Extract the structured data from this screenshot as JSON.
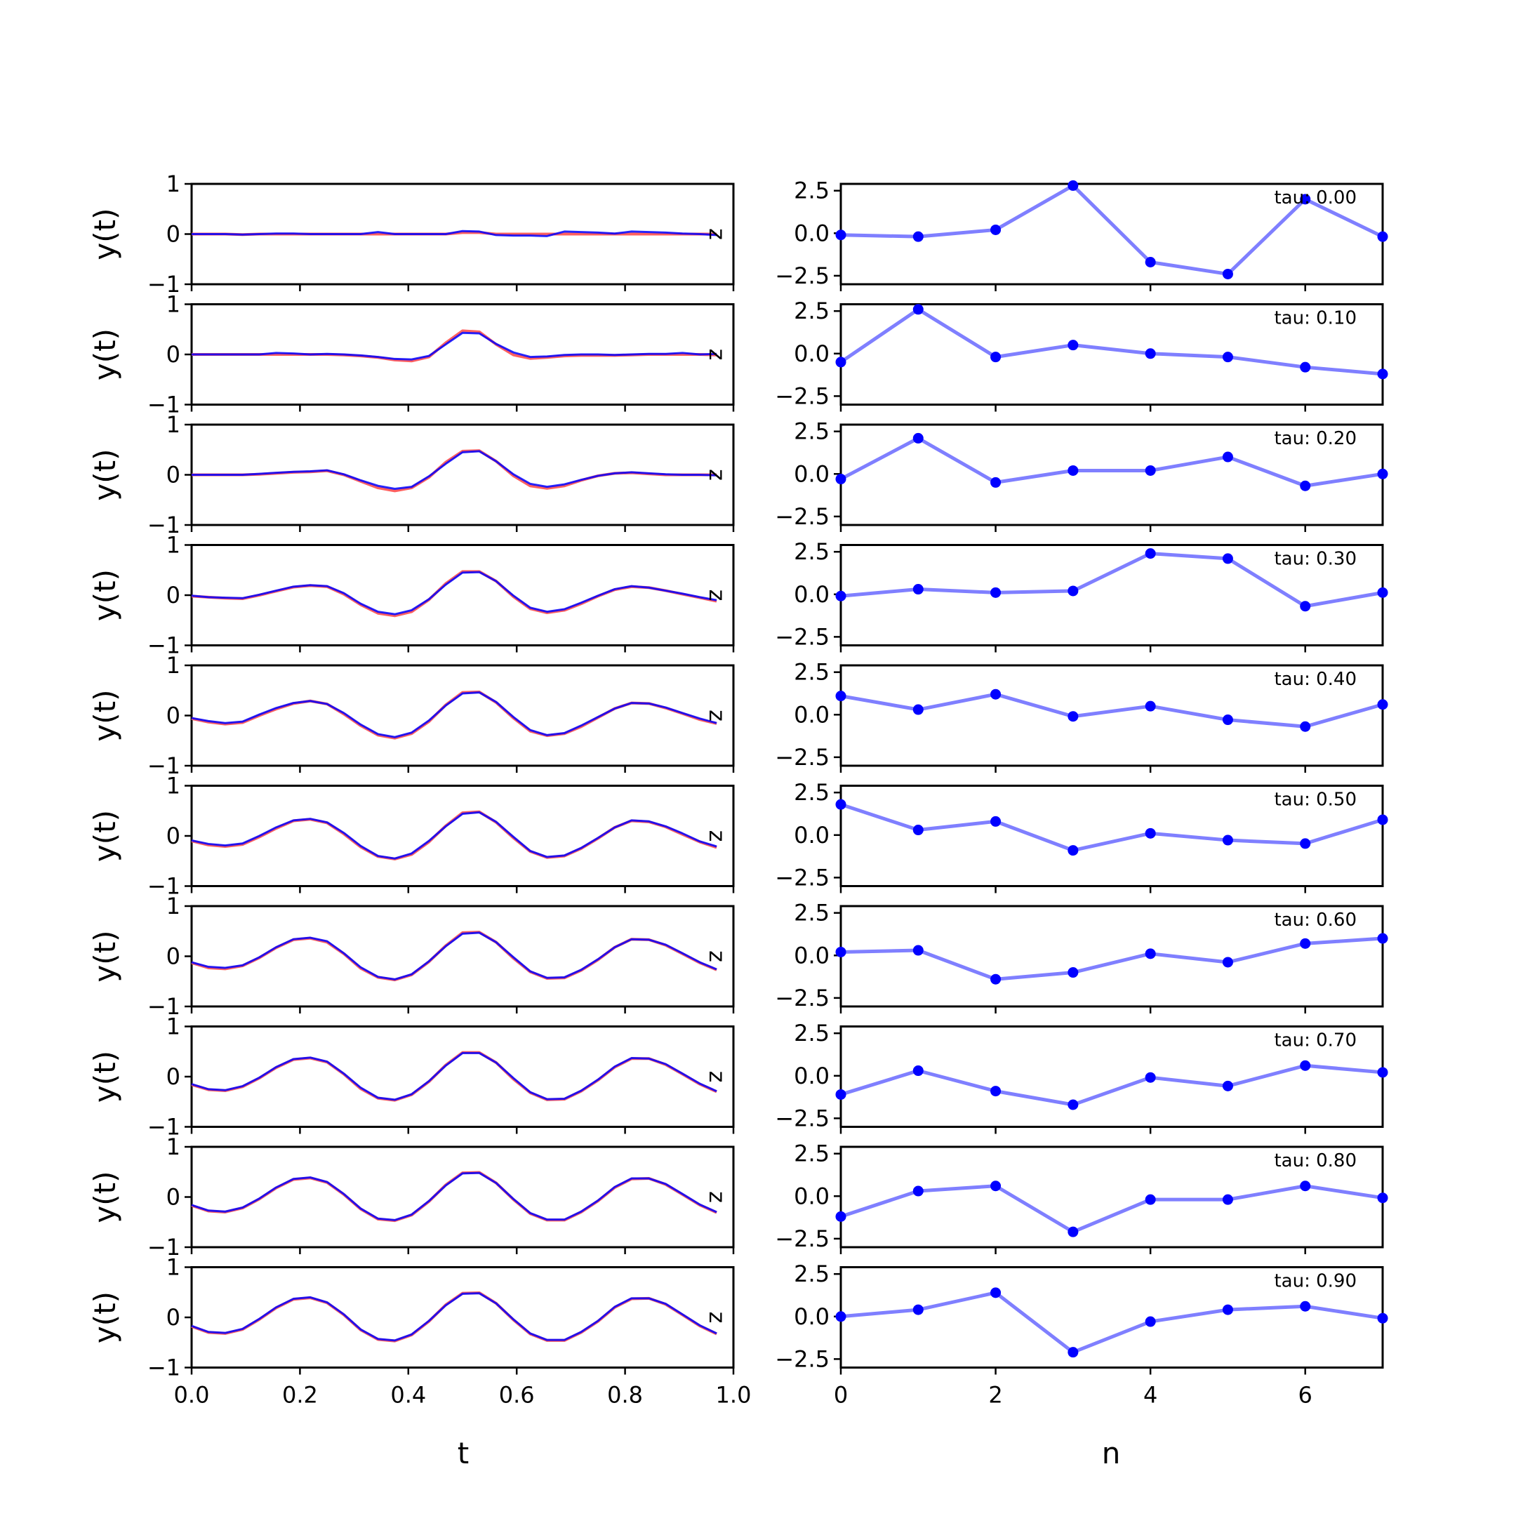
{
  "chart_data": [
    {
      "type": "line",
      "panel": "left",
      "ylabel": "y(t)",
      "xlabel": "t",
      "xlim": [
        0.0,
        1.0
      ],
      "ylim": [
        -1,
        1
      ],
      "yticks": [
        -1,
        0,
        1
      ],
      "ytick_labels": [
        "−1",
        "0",
        "1"
      ],
      "xticks": [
        0.0,
        0.2,
        0.4,
        0.6,
        0.8,
        1.0
      ],
      "xtick_labels": [
        "0.0",
        "0.2",
        "0.4",
        "0.6",
        "0.8",
        "1.0"
      ],
      "series_colors": {
        "reference": "#ff6060",
        "predicted": "#0000ff",
        "overlap": "#800080"
      },
      "inline_label": "z",
      "t": [
        0.0,
        0.031,
        0.062,
        0.094,
        0.125,
        0.156,
        0.188,
        0.219,
        0.25,
        0.281,
        0.312,
        0.344,
        0.375,
        0.406,
        0.438,
        0.469,
        0.5,
        0.531,
        0.562,
        0.594,
        0.625,
        0.656,
        0.688,
        0.719,
        0.75,
        0.781,
        0.812,
        0.844,
        0.875,
        0.906,
        0.938,
        0.969
      ],
      "rows": [
        {
          "reference": [
            0.0,
            0.0,
            0.0,
            -0.01,
            0.0,
            0.0,
            0.0,
            0.0,
            0.0,
            0.0,
            0.0,
            0.0,
            0.0,
            0.0,
            0.0,
            0.0,
            0.03,
            0.03,
            0.0,
            0.0,
            0.0,
            0.0,
            0.0,
            0.0,
            0.0,
            0.0,
            0.0,
            0.0,
            0.0,
            0.0,
            0.0,
            0.0
          ],
          "predicted": [
            0.0,
            0.0,
            0.0,
            -0.01,
            0.0,
            0.01,
            0.01,
            0.0,
            0.0,
            0.0,
            0.0,
            0.04,
            0.0,
            0.0,
            0.0,
            0.0,
            0.06,
            0.05,
            -0.02,
            -0.03,
            -0.03,
            -0.04,
            0.05,
            0.04,
            0.03,
            0.01,
            0.05,
            0.04,
            0.03,
            0.01,
            0.0,
            -0.02
          ]
        },
        {
          "reference": [
            0.0,
            0.0,
            0.0,
            0.0,
            0.0,
            0.0,
            0.0,
            0.0,
            0.0,
            -0.01,
            -0.03,
            -0.06,
            -0.11,
            -0.13,
            -0.05,
            0.23,
            0.47,
            0.45,
            0.2,
            -0.01,
            -0.08,
            -0.06,
            -0.03,
            -0.02,
            -0.02,
            -0.02,
            -0.01,
            0.0,
            0.0,
            0.0,
            0.0,
            -0.01
          ],
          "predicted": [
            0.0,
            0.0,
            0.0,
            0.0,
            0.0,
            0.03,
            0.02,
            0.0,
            0.01,
            0.0,
            -0.02,
            -0.05,
            -0.09,
            -0.1,
            -0.03,
            0.2,
            0.43,
            0.42,
            0.21,
            0.04,
            -0.05,
            -0.04,
            -0.01,
            0.0,
            0.0,
            -0.01,
            0.0,
            0.01,
            0.01,
            0.03,
            0.0,
            0.01
          ]
        },
        {
          "reference": [
            0.0,
            0.0,
            0.0,
            0.0,
            0.01,
            0.03,
            0.05,
            0.06,
            0.08,
            0.0,
            -0.13,
            -0.26,
            -0.32,
            -0.26,
            -0.05,
            0.25,
            0.47,
            0.48,
            0.27,
            -0.02,
            -0.22,
            -0.27,
            -0.22,
            -0.11,
            -0.02,
            0.03,
            0.04,
            0.02,
            0.0,
            0.0,
            0.0,
            0.0
          ],
          "predicted": [
            0.0,
            0.0,
            0.0,
            0.0,
            0.02,
            0.04,
            0.06,
            0.07,
            0.09,
            0.01,
            -0.11,
            -0.22,
            -0.28,
            -0.24,
            -0.03,
            0.22,
            0.45,
            0.47,
            0.27,
            0.01,
            -0.18,
            -0.24,
            -0.19,
            -0.1,
            -0.02,
            0.03,
            0.05,
            0.03,
            0.01,
            0.0,
            0.0,
            -0.01
          ]
        },
        {
          "reference": [
            -0.02,
            -0.04,
            -0.06,
            -0.07,
            0.0,
            0.08,
            0.16,
            0.19,
            0.17,
            0.02,
            -0.19,
            -0.36,
            -0.41,
            -0.33,
            -0.09,
            0.23,
            0.47,
            0.47,
            0.28,
            -0.03,
            -0.27,
            -0.35,
            -0.3,
            -0.17,
            -0.02,
            0.11,
            0.17,
            0.15,
            0.09,
            0.02,
            -0.05,
            -0.12
          ],
          "predicted": [
            -0.01,
            -0.04,
            -0.05,
            -0.06,
            0.01,
            0.09,
            0.17,
            0.2,
            0.18,
            0.04,
            -0.17,
            -0.33,
            -0.38,
            -0.3,
            -0.08,
            0.21,
            0.45,
            0.46,
            0.28,
            -0.01,
            -0.25,
            -0.33,
            -0.28,
            -0.15,
            -0.01,
            0.12,
            0.18,
            0.15,
            0.09,
            0.03,
            -0.04,
            -0.1
          ]
        },
        {
          "reference": [
            -0.06,
            -0.13,
            -0.17,
            -0.14,
            0.0,
            0.13,
            0.24,
            0.29,
            0.23,
            0.03,
            -0.2,
            -0.39,
            -0.45,
            -0.36,
            -0.12,
            0.21,
            0.46,
            0.47,
            0.26,
            -0.05,
            -0.31,
            -0.4,
            -0.36,
            -0.22,
            -0.04,
            0.14,
            0.25,
            0.24,
            0.15,
            0.04,
            -0.08,
            -0.16
          ],
          "predicted": [
            -0.05,
            -0.11,
            -0.15,
            -0.12,
            0.02,
            0.15,
            0.25,
            0.29,
            0.23,
            0.05,
            -0.18,
            -0.37,
            -0.43,
            -0.34,
            -0.1,
            0.2,
            0.44,
            0.46,
            0.27,
            -0.03,
            -0.29,
            -0.39,
            -0.35,
            -0.2,
            -0.03,
            0.14,
            0.25,
            0.24,
            0.16,
            0.05,
            -0.06,
            -0.15
          ]
        },
        {
          "reference": [
            -0.1,
            -0.18,
            -0.21,
            -0.17,
            -0.02,
            0.15,
            0.3,
            0.33,
            0.26,
            0.04,
            -0.22,
            -0.41,
            -0.46,
            -0.37,
            -0.12,
            0.2,
            0.46,
            0.48,
            0.27,
            -0.04,
            -0.31,
            -0.43,
            -0.4,
            -0.25,
            -0.05,
            0.17,
            0.3,
            0.28,
            0.18,
            0.03,
            -0.12,
            -0.23
          ],
          "predicted": [
            -0.09,
            -0.16,
            -0.19,
            -0.15,
            0.0,
            0.17,
            0.31,
            0.34,
            0.27,
            0.06,
            -0.2,
            -0.4,
            -0.45,
            -0.35,
            -0.1,
            0.19,
            0.44,
            0.47,
            0.28,
            -0.02,
            -0.3,
            -0.42,
            -0.39,
            -0.24,
            -0.04,
            0.17,
            0.31,
            0.29,
            0.19,
            0.05,
            -0.11,
            -0.21
          ]
        },
        {
          "reference": [
            -0.13,
            -0.23,
            -0.25,
            -0.19,
            -0.03,
            0.17,
            0.33,
            0.36,
            0.28,
            0.05,
            -0.24,
            -0.42,
            -0.47,
            -0.37,
            -0.11,
            0.21,
            0.47,
            0.48,
            0.28,
            -0.04,
            -0.31,
            -0.44,
            -0.43,
            -0.28,
            -0.07,
            0.18,
            0.34,
            0.33,
            0.22,
            0.05,
            -0.13,
            -0.27
          ],
          "predicted": [
            -0.12,
            -0.21,
            -0.23,
            -0.18,
            -0.02,
            0.18,
            0.34,
            0.37,
            0.3,
            0.06,
            -0.22,
            -0.41,
            -0.46,
            -0.36,
            -0.1,
            0.2,
            0.45,
            0.47,
            0.28,
            -0.02,
            -0.3,
            -0.43,
            -0.42,
            -0.27,
            -0.06,
            0.18,
            0.34,
            0.33,
            0.23,
            0.06,
            -0.12,
            -0.26
          ]
        },
        {
          "reference": [
            -0.16,
            -0.26,
            -0.28,
            -0.2,
            -0.03,
            0.18,
            0.34,
            0.37,
            0.29,
            0.05,
            -0.24,
            -0.43,
            -0.47,
            -0.36,
            -0.1,
            0.23,
            0.48,
            0.48,
            0.28,
            -0.05,
            -0.32,
            -0.46,
            -0.45,
            -0.29,
            -0.07,
            0.19,
            0.36,
            0.36,
            0.24,
            0.05,
            -0.15,
            -0.3
          ],
          "predicted": [
            -0.15,
            -0.25,
            -0.27,
            -0.19,
            -0.02,
            0.19,
            0.35,
            0.38,
            0.3,
            0.06,
            -0.22,
            -0.42,
            -0.46,
            -0.35,
            -0.09,
            0.22,
            0.47,
            0.47,
            0.28,
            -0.03,
            -0.31,
            -0.45,
            -0.44,
            -0.28,
            -0.06,
            0.2,
            0.37,
            0.36,
            0.25,
            0.06,
            -0.14,
            -0.29
          ]
        },
        {
          "reference": [
            -0.17,
            -0.28,
            -0.3,
            -0.22,
            -0.04,
            0.18,
            0.35,
            0.38,
            0.29,
            0.05,
            -0.24,
            -0.44,
            -0.47,
            -0.36,
            -0.09,
            0.24,
            0.48,
            0.49,
            0.28,
            -0.05,
            -0.33,
            -0.46,
            -0.46,
            -0.3,
            -0.08,
            0.19,
            0.36,
            0.37,
            0.25,
            0.05,
            -0.16,
            -0.31
          ],
          "predicted": [
            -0.16,
            -0.27,
            -0.29,
            -0.21,
            -0.03,
            0.19,
            0.36,
            0.39,
            0.3,
            0.06,
            -0.23,
            -0.43,
            -0.46,
            -0.35,
            -0.08,
            0.23,
            0.47,
            0.48,
            0.28,
            -0.04,
            -0.32,
            -0.45,
            -0.45,
            -0.29,
            -0.07,
            0.2,
            0.37,
            0.37,
            0.26,
            0.06,
            -0.15,
            -0.3
          ]
        },
        {
          "reference": [
            -0.18,
            -0.3,
            -0.32,
            -0.24,
            -0.04,
            0.19,
            0.36,
            0.39,
            0.29,
            0.05,
            -0.25,
            -0.44,
            -0.47,
            -0.35,
            -0.08,
            0.25,
            0.48,
            0.49,
            0.28,
            -0.05,
            -0.33,
            -0.46,
            -0.46,
            -0.3,
            -0.08,
            0.2,
            0.37,
            0.38,
            0.26,
            0.05,
            -0.17,
            -0.33
          ],
          "predicted": [
            -0.17,
            -0.29,
            -0.31,
            -0.23,
            -0.03,
            0.2,
            0.37,
            0.4,
            0.3,
            0.06,
            -0.24,
            -0.43,
            -0.46,
            -0.34,
            -0.07,
            0.24,
            0.47,
            0.48,
            0.28,
            -0.04,
            -0.32,
            -0.45,
            -0.45,
            -0.29,
            -0.07,
            0.21,
            0.38,
            0.38,
            0.27,
            0.06,
            -0.16,
            -0.32
          ]
        }
      ]
    },
    {
      "type": "line",
      "panel": "right",
      "xlabel": "n",
      "xlim": [
        0,
        7
      ],
      "ylim": [
        -3.0,
        2.9
      ],
      "yticks": [
        -2.5,
        0.0,
        2.5
      ],
      "ytick_labels": [
        "−2.5",
        "0.0",
        "2.5"
      ],
      "xticks": [
        0,
        2,
        4,
        6
      ],
      "xtick_labels": [
        "0",
        "2",
        "4",
        "6"
      ],
      "line_color": "#7f7fff",
      "marker_color": "#0000ff",
      "x": [
        0,
        1,
        2,
        3,
        4,
        5,
        6,
        7
      ],
      "rows": [
        {
          "tau_label": "tau: 0.00",
          "values": [
            -0.1,
            -0.2,
            0.2,
            2.8,
            -1.7,
            -2.4,
            2.0,
            -0.2
          ]
        },
        {
          "tau_label": "tau: 0.10",
          "values": [
            -0.5,
            2.6,
            -0.2,
            0.5,
            0.0,
            -0.2,
            -0.8,
            -1.2
          ]
        },
        {
          "tau_label": "tau: 0.20",
          "values": [
            -0.3,
            2.1,
            -0.5,
            0.2,
            0.2,
            1.0,
            -0.7,
            0.0
          ]
        },
        {
          "tau_label": "tau: 0.30",
          "values": [
            -0.1,
            0.3,
            0.1,
            0.2,
            2.4,
            2.1,
            -0.7,
            0.1
          ]
        },
        {
          "tau_label": "tau: 0.40",
          "values": [
            1.1,
            0.3,
            1.2,
            -0.1,
            0.5,
            -0.3,
            -0.7,
            0.6
          ]
        },
        {
          "tau_label": "tau: 0.50",
          "values": [
            1.8,
            0.3,
            0.8,
            -0.9,
            0.1,
            -0.3,
            -0.5,
            0.9
          ]
        },
        {
          "tau_label": "tau: 0.60",
          "values": [
            0.2,
            0.3,
            -1.4,
            -1.0,
            0.1,
            -0.4,
            0.7,
            1.0
          ]
        },
        {
          "tau_label": "tau: 0.70",
          "values": [
            -1.1,
            0.3,
            -0.9,
            -1.7,
            -0.1,
            -0.6,
            0.6,
            0.2
          ]
        },
        {
          "tau_label": "tau: 0.80",
          "values": [
            -1.2,
            0.3,
            0.6,
            -2.1,
            -0.2,
            -0.2,
            0.6,
            -0.1
          ]
        },
        {
          "tau_label": "tau: 0.90",
          "values": [
            0.0,
            0.4,
            1.4,
            -2.1,
            -0.3,
            0.4,
            0.6,
            -0.1
          ]
        }
      ]
    }
  ]
}
